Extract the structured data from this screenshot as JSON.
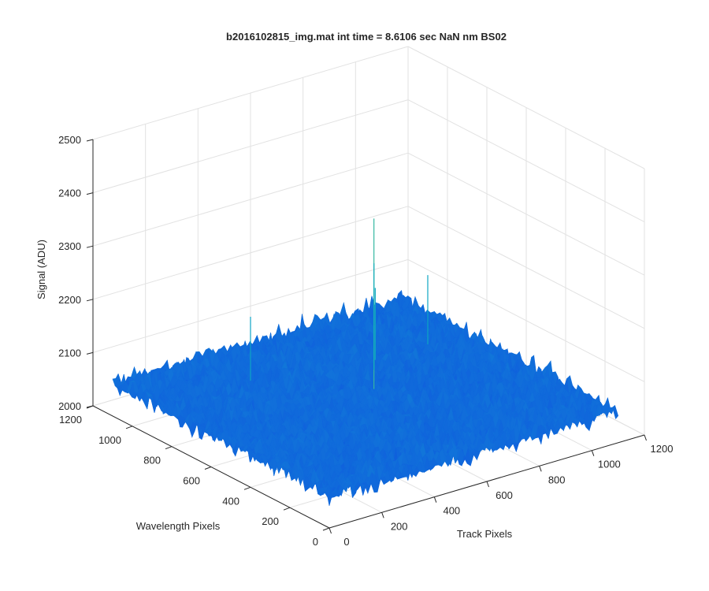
{
  "chart_data": {
    "type": "surface",
    "title": "b2016102815_img.mat int time = 8.6106 sec  NaN nm BS02",
    "xlabel": "Track Pixels",
    "ylabel": "Wavelength Pixels",
    "zlabel": "Signal (ADU)",
    "xlim": [
      0,
      1200
    ],
    "ylim": [
      0,
      1200
    ],
    "zlim": [
      2000,
      2500
    ],
    "x_ticks": [
      "0",
      "200",
      "400",
      "600",
      "800",
      "1000",
      "1200"
    ],
    "y_ticks": [
      "0",
      "200",
      "400",
      "600",
      "800",
      "1000",
      "1200"
    ],
    "z_ticks": [
      "2000",
      "2100",
      "2200",
      "2300",
      "2400",
      "2500"
    ],
    "grid": true,
    "surface_extent": {
      "x": [
        0,
        1100
      ],
      "y": [
        0,
        1100
      ]
    },
    "surface_mean": 2060,
    "surface_range": [
      2030,
      2090
    ],
    "spikes": [
      {
        "x": 560,
        "y": 520,
        "z": 2400
      },
      {
        "x": 650,
        "y": 640,
        "z": 2280
      },
      {
        "x": 700,
        "y": 700,
        "z": 2215
      },
      {
        "x": 300,
        "y": 800,
        "z": 2200
      },
      {
        "x": 900,
        "y": 700,
        "z": 2210
      }
    ],
    "colormap": "parula"
  }
}
